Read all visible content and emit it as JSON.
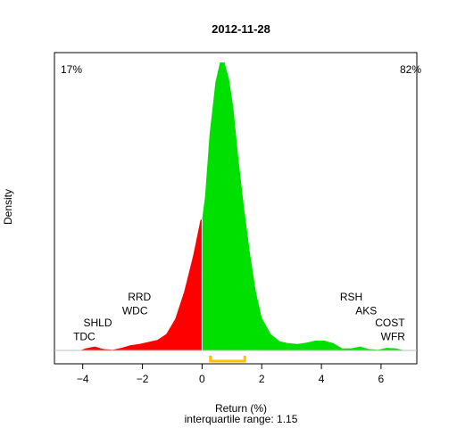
{
  "chart_data": {
    "type": "area",
    "title": "2012-11-28",
    "xlabel": "Return (%)",
    "ylabel": "Density",
    "subtitle": "interquartile range: 1.15",
    "xlim": [
      -4.95,
      7.2
    ],
    "ylim": [
      0,
      0.455
    ],
    "x_ticks": [
      -4,
      -2,
      0,
      2,
      4,
      6
    ],
    "grid": false,
    "pct_negative": "17%",
    "pct_positive": "82%",
    "colors": {
      "negative": "#ff0000",
      "positive": "#00e000",
      "neg_text": "#ff0000",
      "pos_text": "#00a000",
      "iqr": "#ffc000",
      "baseline": "#bebebe"
    },
    "interquartile_range": {
      "q1": 0.28,
      "q3": 1.43,
      "value": 1.15
    },
    "density": {
      "x": [
        -4.1,
        -3.9,
        -3.6,
        -3.3,
        -3.0,
        -2.7,
        -2.4,
        -2.1,
        -1.8,
        -1.5,
        -1.2,
        -0.9,
        -0.6,
        -0.3,
        -0.05,
        0.0,
        0.1,
        0.25,
        0.45,
        0.6,
        0.75,
        0.9,
        1.05,
        1.2,
        1.4,
        1.6,
        1.8,
        2.0,
        2.3,
        2.6,
        2.9,
        3.2,
        3.5,
        3.8,
        4.1,
        4.4,
        4.7,
        5.0,
        5.3,
        5.6,
        5.9,
        6.2,
        6.5,
        6.8
      ],
      "y": [
        0.0,
        0.003,
        0.006,
        0.002,
        0.001,
        0.004,
        0.008,
        0.01,
        0.013,
        0.016,
        0.025,
        0.048,
        0.09,
        0.145,
        0.2,
        0.2,
        0.235,
        0.33,
        0.41,
        0.44,
        0.44,
        0.415,
        0.37,
        0.3,
        0.22,
        0.15,
        0.09,
        0.05,
        0.025,
        0.014,
        0.011,
        0.01,
        0.012,
        0.015,
        0.015,
        0.011,
        0.003,
        0.003,
        0.006,
        0.002,
        0.001,
        0.004,
        0.003,
        0.0
      ]
    },
    "annotations": [
      {
        "text": "TDC",
        "x": -3.95,
        "y": 0.016
      },
      {
        "text": "SHLD",
        "x": -3.5,
        "y": 0.037
      },
      {
        "text": "WDC",
        "x": -2.25,
        "y": 0.055
      },
      {
        "text": "RRD",
        "x": -2.1,
        "y": 0.076
      },
      {
        "text": "RSH",
        "x": 5.0,
        "y": 0.076
      },
      {
        "text": "AKS",
        "x": 5.5,
        "y": 0.055
      },
      {
        "text": "COST",
        "x": 6.3,
        "y": 0.037
      },
      {
        "text": "WFR",
        "x": 6.4,
        "y": 0.016
      }
    ]
  }
}
